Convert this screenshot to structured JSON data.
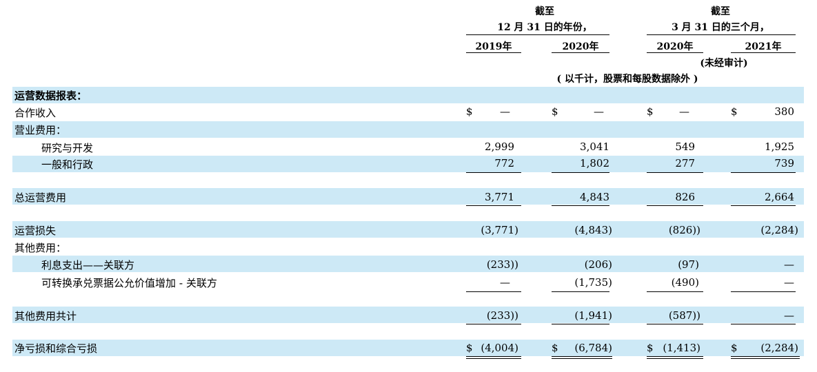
{
  "header": {
    "group1_line1": "截至",
    "group1_line2": "12 月 31 日的年份，",
    "group2_line1": "截至",
    "group2_line2": "3 月 31 日的三个月，",
    "years": [
      "2019年",
      "2020年",
      "2020年",
      "2021年"
    ],
    "unaudited": "(未经审计)",
    "units": "( 以千计，股票和每股数据除外 )"
  },
  "rows": [
    {
      "label": "运营数据报表：",
      "bold": true
    },
    {
      "label": "合作收入",
      "values": [
        "—",
        "—",
        "—",
        "380"
      ],
      "dollar": true
    },
    {
      "label": "营业费用："
    },
    {
      "label": "研究与开发",
      "values": [
        "2,999",
        "3,041",
        "549",
        "1,925"
      ]
    },
    {
      "label": "一般和行政",
      "values": [
        "772",
        "1,802",
        "277",
        "739"
      ]
    },
    {
      "label": "总运营费用",
      "values": [
        "3,771",
        "4,843",
        "826",
        "2,664"
      ]
    },
    {
      "label": "运营损失",
      "values": [
        "(3,771)",
        "(4,843)",
        "(826))",
        "(2,284)"
      ]
    },
    {
      "label": "其他费用："
    },
    {
      "label": "利息支出——关联方",
      "values": [
        "(233))",
        "(206)",
        "(97)",
        "—"
      ]
    },
    {
      "label": "可转换承兑票据公允价值增加 - 关联方",
      "values": [
        "—",
        "(1,735)",
        "(490)",
        "—"
      ]
    },
    {
      "label": "其他费用共计",
      "values": [
        "(233))",
        "(1,941)",
        "(587))",
        "—"
      ]
    },
    {
      "label": "净亏损和综合亏损",
      "values": [
        "(4,004)",
        "(6,784)",
        "(1,413)",
        "(2,284)"
      ],
      "dollar": true
    }
  ],
  "dollar_sign": "$"
}
